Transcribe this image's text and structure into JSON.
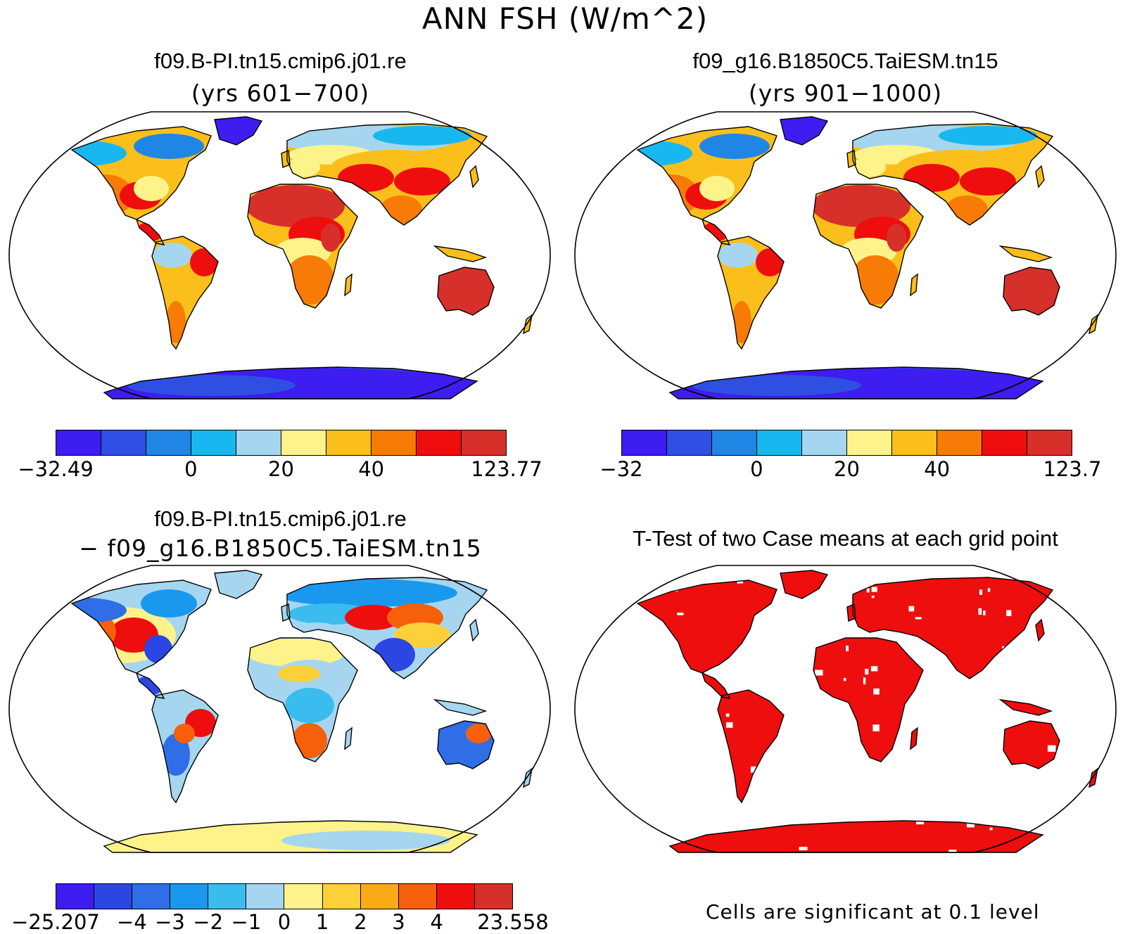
{
  "title": "ANN FSH (W/m^2)",
  "colors": {
    "base_palette": [
      "#3d1df0",
      "#2f4fe2",
      "#1f86e6",
      "#19b7f0",
      "#a6d6ef",
      "#fdf38a",
      "#fbbf1b",
      "#f77b06",
      "#ee0e0e",
      "#d7302b"
    ],
    "diff_palette": [
      "#3d1df0",
      "#2b46e3",
      "#2f6ee6",
      "#1a98ee",
      "#3bbcef",
      "#a6d6ef",
      "#fdf38a",
      "#fcd038",
      "#fbaa17",
      "#f7600a",
      "#ee0e0e",
      "#d7302b"
    ],
    "significant": "#ee0e0e"
  },
  "panels": {
    "top_left": {
      "title": "f09.B-PI.tn15.cmip6.j01.re",
      "subtitle": "(yrs 601−700)",
      "colorbar_ticks": [
        "−32.49",
        "0",
        "20",
        "40",
        "123.77"
      ]
    },
    "top_right": {
      "title": "f09_g16.B1850C5.TaiESM.tn15",
      "subtitle": "(yrs 901−1000)",
      "colorbar_ticks": [
        "−32",
        "0",
        "20",
        "40",
        "123.7"
      ]
    },
    "bottom_left": {
      "title": "f09.B-PI.tn15.cmip6.j01.re",
      "subtitle": "− f09_g16.B1850C5.TaiESM.tn15",
      "colorbar_ticks": [
        "−25.207",
        "−4",
        "−3",
        "−2",
        "−1",
        "0",
        "1",
        "2",
        "3",
        "4",
        "23.558"
      ]
    },
    "bottom_right": {
      "title": "T-Test of two Case means at each grid point",
      "note": "Cells are significant at 0.1 level"
    }
  }
}
